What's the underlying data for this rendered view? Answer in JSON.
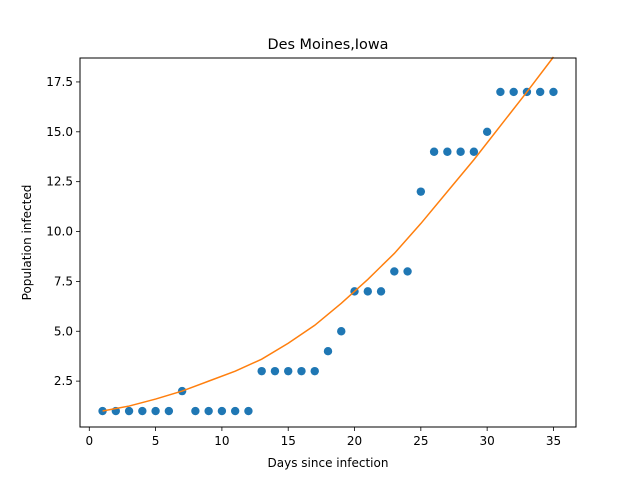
{
  "chart_data": {
    "type": "scatter",
    "title": "Des Moines,Iowa",
    "xlabel": "Days since infection",
    "ylabel": "Population infected",
    "xlim": [
      -0.7,
      36.7
    ],
    "ylim": [
      0.2,
      18.7
    ],
    "xticks": [
      0,
      5,
      10,
      15,
      20,
      25,
      30,
      35
    ],
    "yticks": [
      2.5,
      5.0,
      7.5,
      10.0,
      12.5,
      15.0,
      17.5
    ],
    "xtick_labels": [
      "0",
      "5",
      "10",
      "15",
      "20",
      "25",
      "30",
      "35"
    ],
    "ytick_labels": [
      "2.5",
      "5.0",
      "7.5",
      "10.0",
      "12.5",
      "15.0",
      "17.5"
    ],
    "grid": false,
    "series": [
      {
        "kind": "scatter",
        "color": "#1f77b4",
        "x": [
          1,
          2,
          3,
          4,
          5,
          6,
          7,
          8,
          9,
          10,
          11,
          12,
          13,
          14,
          15,
          16,
          17,
          18,
          19,
          20,
          21,
          22,
          23,
          24,
          25,
          26,
          27,
          28,
          29,
          30,
          31,
          32,
          33,
          34,
          35
        ],
        "y": [
          1,
          1,
          1,
          1,
          1,
          1,
          2,
          1,
          1,
          1,
          1,
          1,
          3,
          3,
          3,
          3,
          3,
          4,
          5,
          7,
          7,
          7,
          8,
          8,
          12,
          14,
          14,
          14,
          14,
          15,
          17,
          17,
          17,
          17,
          17
        ]
      },
      {
        "kind": "line",
        "color": "#ff7f0e",
        "x": [
          1,
          3,
          5,
          7,
          9,
          11,
          13,
          15,
          17,
          19,
          21,
          23,
          25,
          27,
          29,
          31,
          33,
          35
        ],
        "y": [
          1.0,
          1.25,
          1.6,
          2.0,
          2.5,
          3.0,
          3.6,
          4.4,
          5.3,
          6.4,
          7.6,
          8.9,
          10.4,
          12.0,
          13.6,
          15.3,
          17.0,
          18.75
        ]
      }
    ]
  }
}
